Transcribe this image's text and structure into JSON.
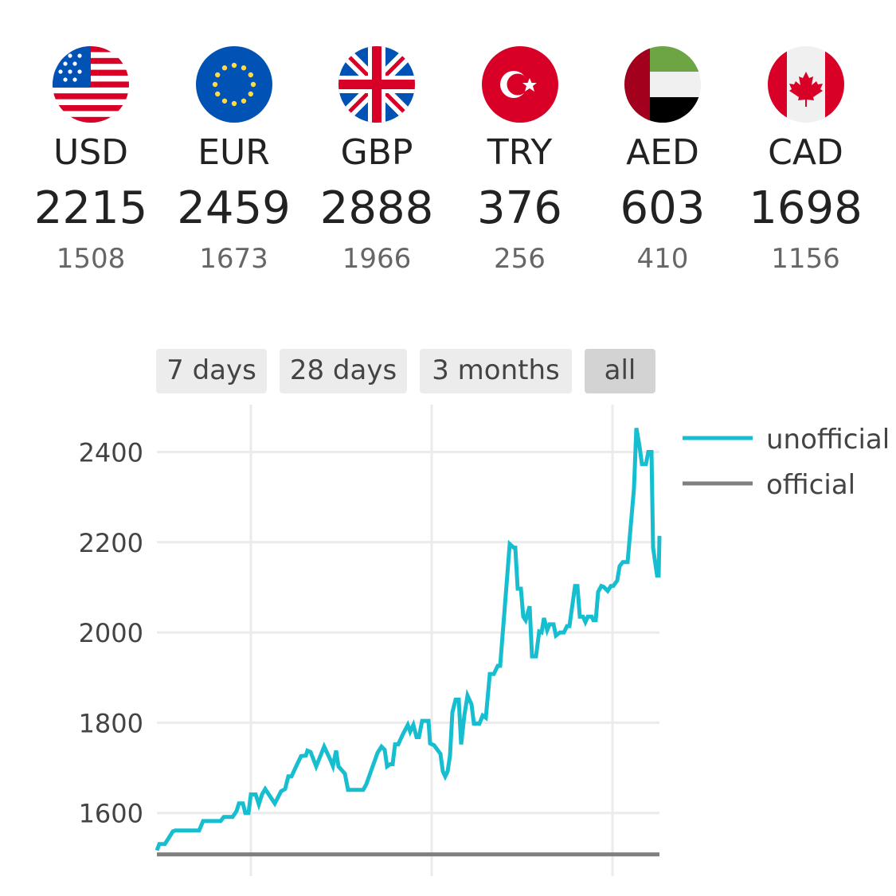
{
  "currencies": [
    {
      "code": "USD",
      "unofficial": "2215",
      "official": "1508",
      "flag": "us-flag"
    },
    {
      "code": "EUR",
      "unofficial": "2459",
      "official": "1673",
      "flag": "eu-flag"
    },
    {
      "code": "GBP",
      "unofficial": "2888",
      "official": "1966",
      "flag": "uk-flag"
    },
    {
      "code": "TRY",
      "unofficial": "376",
      "official": "256",
      "flag": "turkey-flag"
    },
    {
      "code": "AED",
      "unofficial": "603",
      "official": "410",
      "flag": "uae-flag"
    },
    {
      "code": "CAD",
      "unofficial": "1698",
      "official": "1156",
      "flag": "canada-flag"
    }
  ],
  "range_buttons": [
    {
      "label": "7 days",
      "active": false
    },
    {
      "label": "28 days",
      "active": false
    },
    {
      "label": "3 months",
      "active": false
    },
    {
      "label": "all",
      "active": true
    }
  ],
  "chart_data": {
    "type": "line",
    "ylim": [
      1460,
      2505
    ],
    "xlim": [
      0,
      631
    ],
    "yticks": [
      "1600",
      "1800",
      "2000",
      "2200",
      "2400"
    ],
    "grid": true,
    "legend_position": "top-right",
    "series": [
      {
        "name": "unofficial",
        "color": "#17becf",
        "points": [
          [
            0,
            1517
          ],
          [
            3,
            1531
          ],
          [
            10,
            1531
          ],
          [
            20,
            1559
          ],
          [
            23,
            1561
          ],
          [
            53,
            1561
          ],
          [
            58,
            1582
          ],
          [
            80,
            1582
          ],
          [
            84,
            1591
          ],
          [
            95,
            1591
          ],
          [
            100,
            1604
          ],
          [
            103,
            1621
          ],
          [
            108,
            1621
          ],
          [
            111,
            1600
          ],
          [
            115,
            1600
          ],
          [
            118,
            1641
          ],
          [
            124,
            1641
          ],
          [
            128,
            1619
          ],
          [
            132,
            1641
          ],
          [
            136,
            1653
          ],
          [
            148,
            1621
          ],
          [
            156,
            1648
          ],
          [
            161,
            1653
          ],
          [
            165,
            1681
          ],
          [
            169,
            1681
          ],
          [
            175,
            1704
          ],
          [
            181,
            1726
          ],
          [
            187,
            1727
          ],
          [
            189,
            1738
          ],
          [
            193,
            1735
          ],
          [
            200,
            1703
          ],
          [
            210,
            1747
          ],
          [
            218,
            1717
          ],
          [
            221,
            1704
          ],
          [
            225,
            1738
          ],
          [
            228,
            1703
          ],
          [
            236,
            1687
          ],
          [
            240,
            1651
          ],
          [
            259,
            1651
          ],
          [
            263,
            1664
          ],
          [
            277,
            1733
          ],
          [
            282,
            1747
          ],
          [
            286,
            1740
          ],
          [
            289,
            1703
          ],
          [
            293,
            1708
          ],
          [
            296,
            1708
          ],
          [
            299,
            1752
          ],
          [
            303,
            1752
          ],
          [
            309,
            1775
          ],
          [
            315,
            1795
          ],
          [
            318,
            1780
          ],
          [
            322,
            1795
          ],
          [
            326,
            1768
          ],
          [
            329,
            1768
          ],
          [
            333,
            1804
          ],
          [
            341,
            1804
          ],
          [
            343,
            1754
          ],
          [
            348,
            1750
          ],
          [
            356,
            1731
          ],
          [
            359,
            1692
          ],
          [
            362,
            1681
          ],
          [
            365,
            1692
          ],
          [
            368,
            1727
          ],
          [
            371,
            1823
          ],
          [
            375,
            1851
          ],
          [
            379,
            1851
          ],
          [
            382,
            1752
          ],
          [
            386,
            1816
          ],
          [
            390,
            1860
          ],
          [
            395,
            1841
          ],
          [
            398,
            1798
          ],
          [
            405,
            1798
          ],
          [
            409,
            1816
          ],
          [
            413,
            1811
          ],
          [
            418,
            1908
          ],
          [
            423,
            1908
          ],
          [
            428,
            1926
          ],
          [
            431,
            1926
          ],
          [
            443,
            2196
          ],
          [
            448,
            2188
          ],
          [
            450,
            2188
          ],
          [
            453,
            2097
          ],
          [
            457,
            2097
          ],
          [
            460,
            2035
          ],
          [
            463,
            2027
          ],
          [
            468,
            2058
          ],
          [
            471,
            1947
          ],
          [
            476,
            1947
          ],
          [
            480,
            2002
          ],
          [
            483,
            2000
          ],
          [
            486,
            2032
          ],
          [
            490,
            2005
          ],
          [
            493,
            2018
          ],
          [
            498,
            2018
          ],
          [
            501,
            1993
          ],
          [
            506,
            2000
          ],
          [
            511,
            2000
          ],
          [
            515,
            2014
          ],
          [
            518,
            2014
          ],
          [
            525,
            2103
          ],
          [
            528,
            2103
          ],
          [
            531,
            2035
          ],
          [
            535,
            2035
          ],
          [
            538,
            2023
          ],
          [
            541,
            2035
          ],
          [
            546,
            2035
          ],
          [
            548,
            2027
          ],
          [
            551,
            2027
          ],
          [
            554,
            2090
          ],
          [
            558,
            2103
          ],
          [
            561,
            2101
          ],
          [
            566,
            2092
          ],
          [
            570,
            2103
          ],
          [
            573,
            2103
          ],
          [
            578,
            2115
          ],
          [
            581,
            2147
          ],
          [
            585,
            2156
          ],
          [
            591,
            2156
          ],
          [
            599,
            2319
          ],
          [
            602,
            2453
          ],
          [
            606,
            2412
          ],
          [
            609,
            2373
          ],
          [
            614,
            2373
          ],
          [
            617,
            2400
          ],
          [
            621,
            2400
          ],
          [
            623,
            2188
          ],
          [
            628,
            2126
          ],
          [
            630,
            2126
          ],
          [
            631,
            2214
          ]
        ]
      },
      {
        "name": "official",
        "color": "#7f7f7f",
        "points": [
          [
            0,
            1508
          ],
          [
            631,
            1508
          ]
        ]
      }
    ]
  }
}
